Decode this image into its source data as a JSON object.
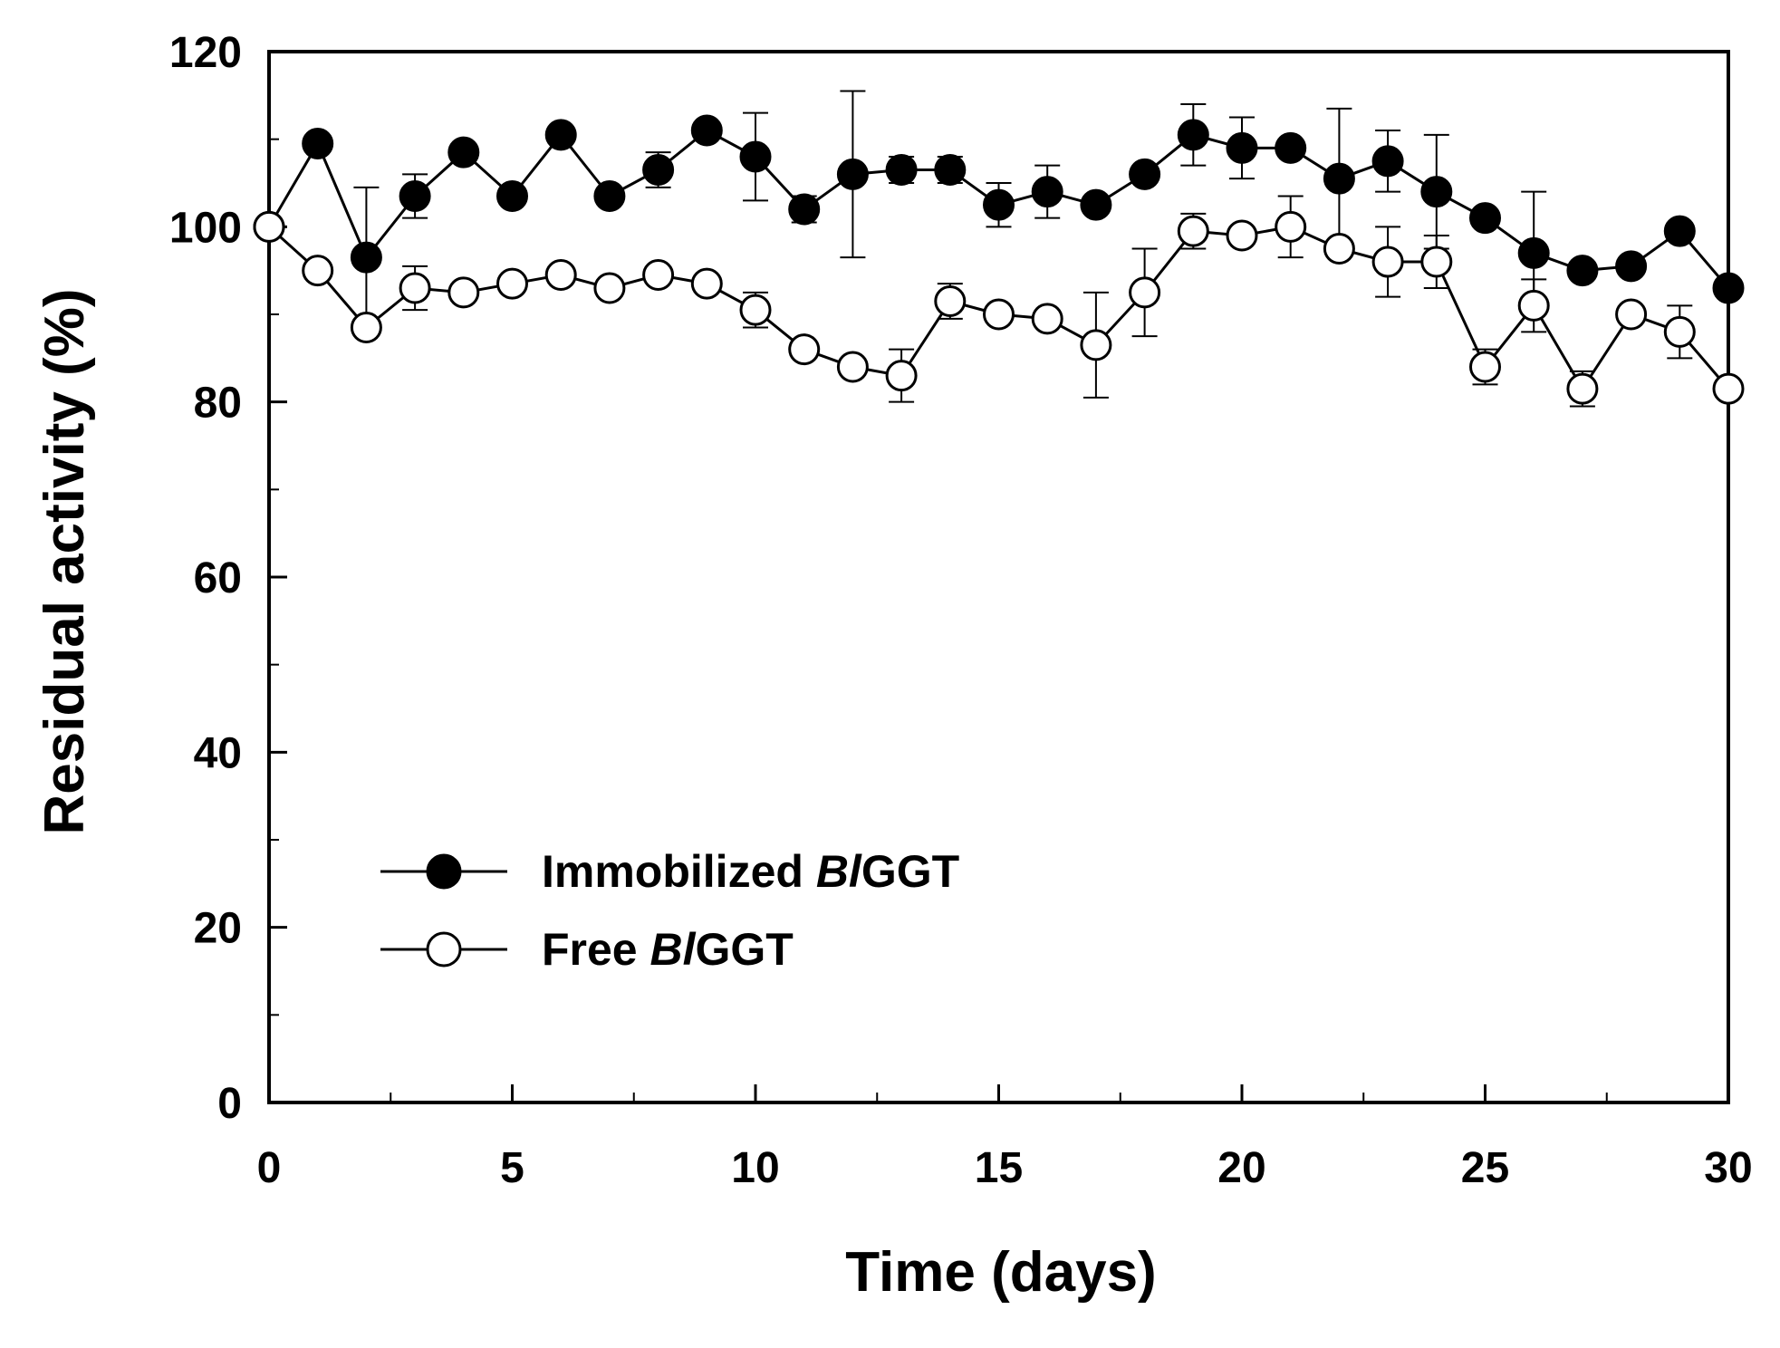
{
  "chart_data": {
    "type": "line",
    "title": "",
    "xlabel": "Time (days)",
    "ylabel": "Residual activity (%)",
    "xlim": [
      0,
      30
    ],
    "ylim": [
      0,
      120
    ],
    "xticks": [
      0,
      5,
      10,
      15,
      20,
      25,
      30
    ],
    "yticks": [
      0,
      20,
      40,
      60,
      80,
      100,
      120
    ],
    "x_minor_step": 2.5,
    "y_minor_step": 10,
    "grid": false,
    "legend_position": "bottom-left",
    "x": [
      0,
      1,
      2,
      3,
      4,
      5,
      6,
      7,
      8,
      9,
      10,
      11,
      12,
      13,
      14,
      15,
      16,
      17,
      18,
      19,
      20,
      21,
      22,
      23,
      24,
      25,
      26,
      27,
      28,
      29,
      30
    ],
    "series": [
      {
        "name": "Immobilized BlGGT",
        "legend_prefix": "Immobilized ",
        "legend_italic": "Bl",
        "legend_suffix": "GGT",
        "marker": "filled-circle",
        "color": "#000000",
        "values": [
          100,
          109.5,
          96.5,
          103.5,
          108.5,
          103.5,
          110.5,
          103.5,
          106.5,
          111,
          108,
          102,
          106,
          106.5,
          106.5,
          102.5,
          104,
          102.5,
          106,
          110.5,
          109,
          109,
          105.5,
          107.5,
          104,
          101,
          97,
          95,
          95.5,
          99.5,
          93
        ],
        "error": [
          0,
          0,
          8,
          2.5,
          0,
          0,
          0,
          0,
          2,
          0,
          5,
          1.5,
          9.5,
          1.5,
          1.5,
          2.5,
          3,
          0,
          0,
          3.5,
          3.5,
          0,
          8,
          3.5,
          6.5,
          0,
          7,
          0,
          0,
          0,
          0
        ]
      },
      {
        "name": "Free BlGGT",
        "legend_prefix": "Free ",
        "legend_italic": "Bl",
        "legend_suffix": "GGT",
        "marker": "open-circle",
        "color": "#000000",
        "values": [
          100,
          95,
          88.5,
          93,
          92.5,
          93.5,
          94.5,
          93,
          94.5,
          93.5,
          90.5,
          86,
          84,
          83,
          91.5,
          90,
          89.5,
          86.5,
          92.5,
          99.5,
          99,
          100,
          97.5,
          96,
          96,
          84,
          91,
          81.5,
          90,
          88,
          81.5
        ],
        "error": [
          0,
          0,
          0,
          2.5,
          0,
          0,
          0,
          0,
          0,
          0,
          2,
          0,
          0,
          3,
          2,
          0,
          0,
          6,
          5,
          2,
          0,
          3.5,
          0,
          4,
          3,
          2,
          3,
          2,
          0,
          3,
          0
        ]
      }
    ]
  }
}
